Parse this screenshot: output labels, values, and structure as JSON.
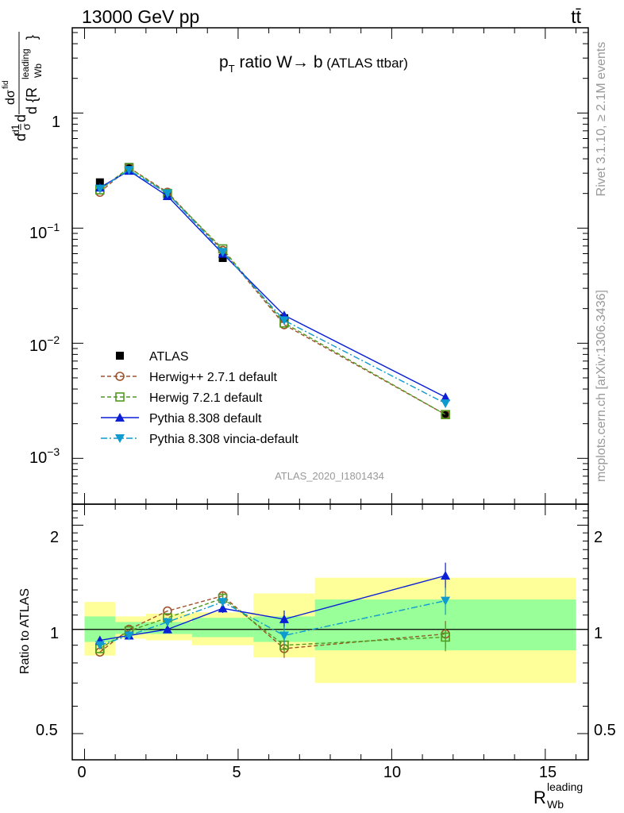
{
  "header": {
    "left": "13000 GeV pp",
    "right": "tt̄"
  },
  "side_text": {
    "rivet": "Rivet 3.1.10, ≥ 2.1M events",
    "mcplots": "mcplots.cern.ch [arXiv:1306.3436]"
  },
  "main_plot": {
    "title_pre": "p",
    "title_sub": "T",
    "title_mid": " ratio W",
    "title_arrow": "→",
    "title_post": " b",
    "title_tag": " (ATLAS ttbar)",
    "watermark": "ATLAS_2020_I1801434",
    "ylabel": {
      "frac_one_num": "1",
      "frac_one_den": "σ",
      "d_num": "d",
      "d_sigma_num": "dσ",
      "d_sigma_sup": "fid",
      "d_den": "d {R",
      "d_den_sup": "leading",
      "d_den_sub": "Wb",
      "d_den_close": "}"
    },
    "yticks": [
      {
        "base": "10",
        "exp": "−3",
        "value": 0.001
      },
      {
        "base": "10",
        "exp": "−2",
        "value": 0.01
      },
      {
        "base": "10",
        "exp": "−1",
        "value": 0.1
      },
      {
        "base": "1",
        "exp": "",
        "value": 1
      }
    ]
  },
  "ratio_plot": {
    "ylabel": "Ratio to ATLAS",
    "yticks": [
      "0.5",
      "1",
      "2"
    ]
  },
  "xaxis": {
    "ticks": [
      "0",
      "5",
      "10",
      "15"
    ],
    "label_main": "R",
    "label_sup": "leading",
    "label_sub": "Wb"
  },
  "legend": [
    {
      "label": "ATLAS",
      "color": "#000000",
      "marker": "square-filled",
      "style": "none"
    },
    {
      "label": "Herwig++ 2.7.1 default",
      "color": "#a0522d",
      "marker": "circle-open",
      "style": "dashed"
    },
    {
      "label": "Herwig 7.2.1 default",
      "color": "#4f9a1f",
      "marker": "square-open",
      "style": "dashed"
    },
    {
      "label": "Pythia 8.308 default",
      "color": "#0a1fd6",
      "marker": "triangle-up",
      "style": "solid"
    },
    {
      "label": "Pythia 8.308 vincia-default",
      "color": "#0f9ad0",
      "marker": "triangle-down",
      "style": "dashdot"
    }
  ],
  "chart_data": {
    "type": "scatter",
    "x_scale": "linear",
    "xlim": [
      -0.4,
      16.4
    ],
    "main_yscale": "log",
    "main_ylim": [
      0.0004,
      5.5
    ],
    "ratio_ylim": [
      0.42,
      2.3
    ],
    "ratio_yscale": "log",
    "bin_edges": [
      0,
      1,
      2,
      3.5,
      5.5,
      7.5,
      16
    ],
    "x": [
      0.5,
      1.45,
      2.7,
      4.5,
      6.5,
      11.75
    ],
    "series": [
      {
        "name": "ATLAS",
        "values": [
          0.25,
          0.34,
          0.19,
          0.055,
          0.0165,
          0.0024
        ]
      },
      {
        "name": "Herwig++ 2.7.1 default",
        "values": [
          0.205,
          0.335,
          0.205,
          0.064,
          0.0145,
          0.0024
        ]
      },
      {
        "name": "Herwig 7.2.1 default",
        "values": [
          0.215,
          0.335,
          0.2,
          0.066,
          0.015,
          0.0024
        ]
      },
      {
        "name": "Pythia 8.308 default",
        "values": [
          0.225,
          0.315,
          0.19,
          0.06,
          0.0175,
          0.0034
        ]
      },
      {
        "name": "Pythia 8.308 vincia-default",
        "values": [
          0.22,
          0.32,
          0.2,
          0.062,
          0.0158,
          0.003
        ]
      }
    ],
    "ratios": [
      {
        "name": "Herwig++ 2.7.1 default",
        "values": [
          0.86,
          1.0,
          1.13,
          1.25,
          0.88,
          0.97
        ]
      },
      {
        "name": "Herwig 7.2.1 default",
        "values": [
          0.88,
          0.99,
          1.08,
          1.23,
          0.9,
          0.95
        ]
      },
      {
        "name": "Pythia 8.308 default",
        "values": [
          0.93,
          0.96,
          1.0,
          1.15,
          1.07,
          1.43
        ]
      },
      {
        "name": "Pythia 8.308 vincia-default",
        "values": [
          0.9,
          0.96,
          1.05,
          1.2,
          0.96,
          1.21
        ]
      }
    ],
    "ratio_errors": [
      0,
      0,
      0,
      0.03,
      0.06,
      0.09
    ],
    "stat_band": [
      [
        0.92,
        1.09
      ],
      [
        0.97,
        1.05
      ],
      [
        0.97,
        1.05
      ],
      [
        0.95,
        1.08
      ],
      [
        0.92,
        1.09
      ],
      [
        0.87,
        1.22
      ]
    ],
    "total_band": [
      [
        0.84,
        1.2
      ],
      [
        0.94,
        1.09
      ],
      [
        0.93,
        1.11
      ],
      [
        0.9,
        1.12
      ],
      [
        0.83,
        1.27
      ],
      [
        0.7,
        1.41
      ]
    ]
  }
}
